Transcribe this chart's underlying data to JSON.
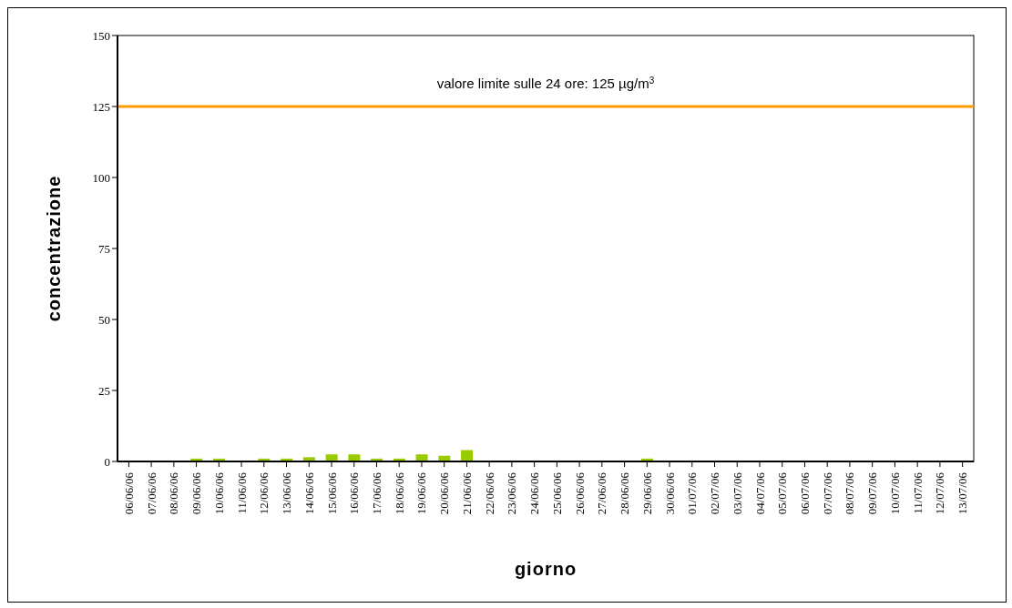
{
  "chart_data": {
    "type": "bar",
    "xlabel": "giorno",
    "ylabel": "concentrazione",
    "categories": [
      "06/06/06",
      "07/06/06",
      "08/06/06",
      "09/06/06",
      "10/06/06",
      "11/06/06",
      "12/06/06",
      "13/06/06",
      "14/06/06",
      "15/06/06",
      "16/06/06",
      "17/06/06",
      "18/06/06",
      "19/06/06",
      "20/06/06",
      "21/06/06",
      "22/06/06",
      "23/06/06",
      "24/06/06",
      "25/06/06",
      "26/06/06",
      "27/06/06",
      "28/06/06",
      "29/06/06",
      "30/06/06",
      "01/07/06",
      "02/07/06",
      "03/07/06",
      "04/07/06",
      "05/07/06",
      "06/07/06",
      "07/07/06",
      "08/07/06",
      "09/07/06",
      "10/07/06",
      "11/07/06",
      "12/07/06",
      "13/07/06"
    ],
    "values": [
      0,
      0,
      0,
      1,
      1,
      0,
      1,
      1,
      1.5,
      2.5,
      2.5,
      1,
      1,
      2.5,
      2,
      4,
      0,
      0,
      0,
      0,
      0,
      0,
      0,
      1,
      0,
      0,
      0,
      0,
      0,
      0,
      0,
      0,
      0,
      0,
      0,
      0,
      0,
      0
    ],
    "color": "#99cc00",
    "ylim": [
      0,
      150
    ],
    "yticks": [
      0,
      25,
      50,
      75,
      100,
      125,
      150
    ],
    "grid": false,
    "legend": false,
    "ref_lines": [
      {
        "axis": "y",
        "value": 125,
        "label": "valore limite sulle 24 ore: 125 µg/m$^{3}$",
        "color": "#ff9900",
        "line_style": "solid"
      }
    ]
  }
}
